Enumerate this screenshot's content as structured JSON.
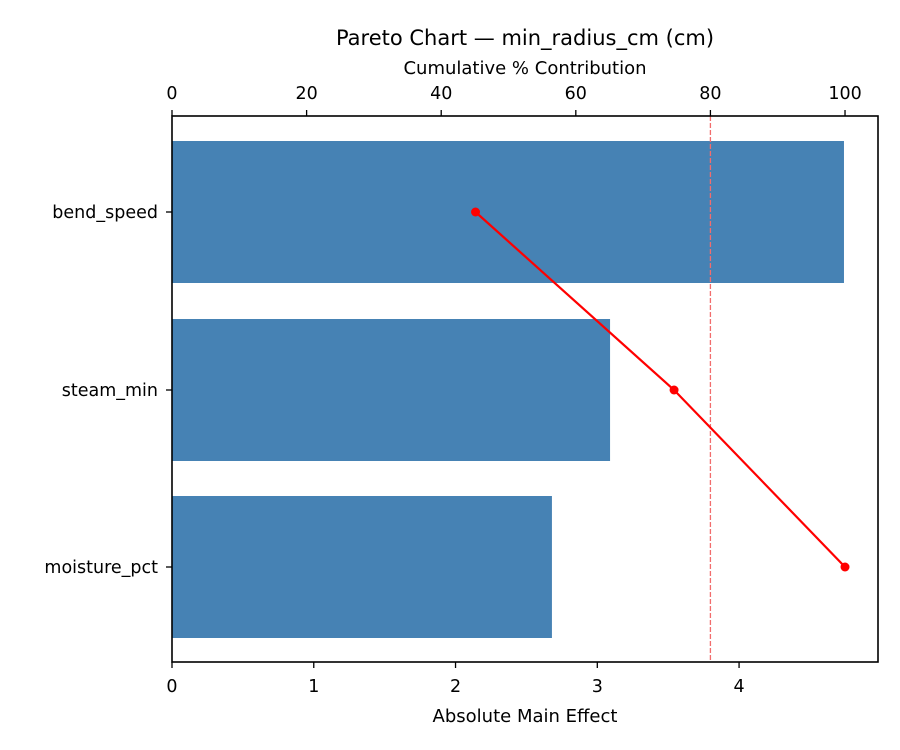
{
  "chart_data": {
    "type": "bar",
    "orientation": "horizontal",
    "title": "Pareto Chart — min_radius_cm (cm)",
    "xlabel": "Absolute Main Effect",
    "ylabel": "",
    "secondary_xlabel": "Cumulative % Contribution",
    "categories": [
      "bend_speed",
      "steam_min",
      "moisture_pct"
    ],
    "series": [
      {
        "name": "Absolute Main Effect",
        "type": "bar",
        "axis": "bottom",
        "color": "#4682b4",
        "values": [
          4.74,
          3.09,
          2.68
        ]
      },
      {
        "name": "Cumulative %",
        "type": "line",
        "axis": "top",
        "color": "#ff0000",
        "marker": "circle",
        "values": [
          45.1,
          74.6,
          100.0
        ]
      }
    ],
    "reference_line": {
      "axis": "top",
      "value": 80,
      "style": "dashed",
      "color": "#ff6666"
    },
    "xlim": [
      0,
      4.98
    ],
    "secondary_xlim": [
      0,
      104.9
    ],
    "xticks": [
      "0",
      "1",
      "2",
      "3",
      "4"
    ],
    "secondary_xticks": [
      "0",
      "20",
      "40",
      "60",
      "80",
      "100"
    ],
    "grid": false,
    "legend": null
  },
  "colors": {
    "bar": "#4682b4",
    "line": "#ff0000",
    "threshold": "#f26d6d"
  }
}
